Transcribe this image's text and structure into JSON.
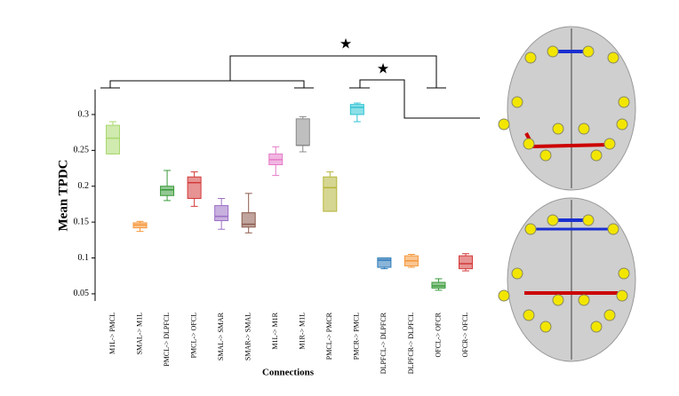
{
  "chart_data": {
    "type": "box",
    "y_label": "Mean TPDC",
    "x_label": "Connections",
    "categories": [
      "M1L-> PMCL",
      "SMAL-> M1L",
      "PMCL-> DLPFCL",
      "PMCL-> OFCL",
      "SMAL-> SMAR",
      "SMAR-> SMAL",
      "M1L-> M1R",
      "M1R-> M1L",
      "PMCL-> PMCR",
      "PMCR-> PMCL",
      "DLPFCL-> DLPFCR",
      "DLPFCR-> DLPFCL",
      "OFCL-> OFCR",
      "OFCR-> OFCL"
    ],
    "boxes": [
      {
        "whisker_low": 0.245,
        "q1": 0.245,
        "median": 0.267,
        "q3": 0.285,
        "whisker_high": 0.29,
        "color": "#a9d86e"
      },
      {
        "whisker_low": 0.137,
        "q1": 0.142,
        "median": 0.146,
        "q3": 0.149,
        "whisker_high": 0.151,
        "color": "#f5973a"
      },
      {
        "whisker_low": 0.18,
        "q1": 0.187,
        "median": 0.195,
        "q3": 0.2,
        "whisker_high": 0.222,
        "color": "#3a9a3a"
      },
      {
        "whisker_low": 0.172,
        "q1": 0.183,
        "median": 0.205,
        "q3": 0.213,
        "whisker_high": 0.22,
        "color": "#d43a3a"
      },
      {
        "whisker_low": 0.14,
        "q1": 0.152,
        "median": 0.158,
        "q3": 0.173,
        "whisker_high": 0.183,
        "color": "#9b6fc4"
      },
      {
        "whisker_low": 0.135,
        "q1": 0.143,
        "median": 0.147,
        "q3": 0.163,
        "whisker_high": 0.19,
        "color": "#8c5a4c"
      },
      {
        "whisker_low": 0.215,
        "q1": 0.23,
        "median": 0.237,
        "q3": 0.245,
        "whisker_high": 0.255,
        "color": "#e67ac8"
      },
      {
        "whisker_low": 0.248,
        "q1": 0.257,
        "median": 0.257,
        "q3": 0.294,
        "whisker_high": 0.297,
        "color": "#8a8a8a"
      },
      {
        "whisker_low": 0.165,
        "q1": 0.165,
        "median": 0.198,
        "q3": 0.213,
        "whisker_high": 0.22,
        "color": "#b5b53a"
      },
      {
        "whisker_low": 0.29,
        "q1": 0.3,
        "median": 0.31,
        "q3": 0.314,
        "whisker_high": 0.316,
        "color": "#2ec4d4"
      },
      {
        "whisker_low": 0.085,
        "q1": 0.087,
        "median": 0.097,
        "q3": 0.1,
        "whisker_high": 0.1,
        "color": "#2a78b8"
      },
      {
        "whisker_low": 0.087,
        "q1": 0.089,
        "median": 0.096,
        "q3": 0.103,
        "whisker_high": 0.105,
        "color": "#f5973a"
      },
      {
        "whisker_low": 0.055,
        "q1": 0.058,
        "median": 0.061,
        "q3": 0.066,
        "whisker_high": 0.071,
        "color": "#3a9a3a"
      },
      {
        "whisker_low": 0.082,
        "q1": 0.085,
        "median": 0.092,
        "q3": 0.103,
        "whisker_high": 0.106,
        "color": "#d43a3a"
      }
    ],
    "ylim": [
      0.04,
      0.335
    ],
    "yticks": [
      0.05,
      0.1,
      0.15,
      0.2,
      0.25,
      0.3
    ],
    "annotations": [
      "★",
      "★"
    ]
  }
}
